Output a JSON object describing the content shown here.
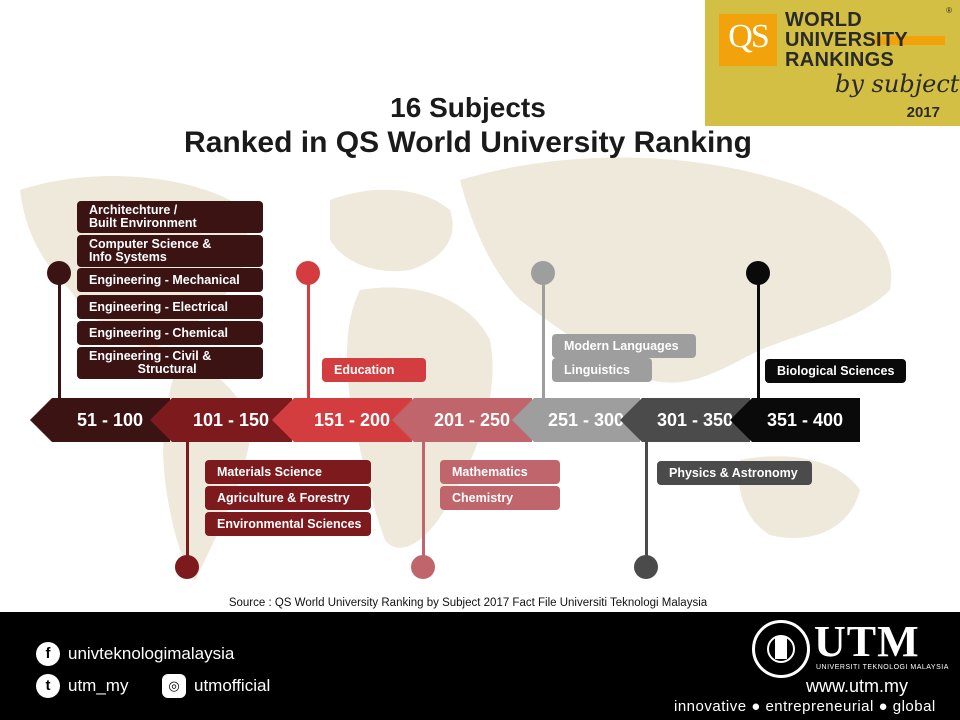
{
  "logo": {
    "badge": "QS",
    "line1": "WORLD",
    "line2": "UNIVERSITY",
    "line3": "RANKINGS",
    "by": "by subject",
    "year": "2017",
    "reg": "®"
  },
  "title": {
    "line1": "16 Subjects",
    "line2": "Ranked in QS World University Ranking"
  },
  "timeline": [
    {
      "range": "51 - 100",
      "color": "#3b1313"
    },
    {
      "range": "101 - 150",
      "color": "#7c1a1d"
    },
    {
      "range": "151 - 200",
      "color": "#d43d3f"
    },
    {
      "range": "201 - 250",
      "color": "#c0656b"
    },
    {
      "range": "251 - 300",
      "color": "#9e9e9e"
    },
    {
      "range": "301 - 350",
      "color": "#4b4b4b"
    },
    {
      "range": "351 - 400",
      "color": "#0a0a0a"
    }
  ],
  "subjects": {
    "r51": [
      "Architechture /\nBuilt Environment",
      "Computer Science &\nInfo Systems",
      "Engineering - Mechanical",
      "Engineering - Electrical",
      "Engineering - Chemical",
      "Engineering - Civil &\n              Structural"
    ],
    "r101": [
      "Materials Science",
      "Agriculture & Forestry",
      "Environmental Sciences"
    ],
    "r151": [
      "Education"
    ],
    "r201": [
      "Mathematics",
      "Chemistry"
    ],
    "r251": [
      "Modern Languages",
      "Linguistics"
    ],
    "r301": [
      "Physics & Astronomy"
    ],
    "r351": [
      "Biological Sciences"
    ]
  },
  "source": "Source : QS World University Ranking by Subject 2017 Fact File Universiti Teknologi Malaysia",
  "footer": {
    "facebook": "univteknologimalaysia",
    "twitter": "utm_my",
    "instagram": "utmofficial",
    "facebook_icon": "f",
    "twitter_icon": "t",
    "instagram_icon": "◎",
    "brand": "UTM",
    "brand_sub": "UNIVERSITI TEKNOLOGI MALAYSIA",
    "url": "www.utm.my",
    "tagline": "innovative ● entrepreneurial ● global"
  }
}
